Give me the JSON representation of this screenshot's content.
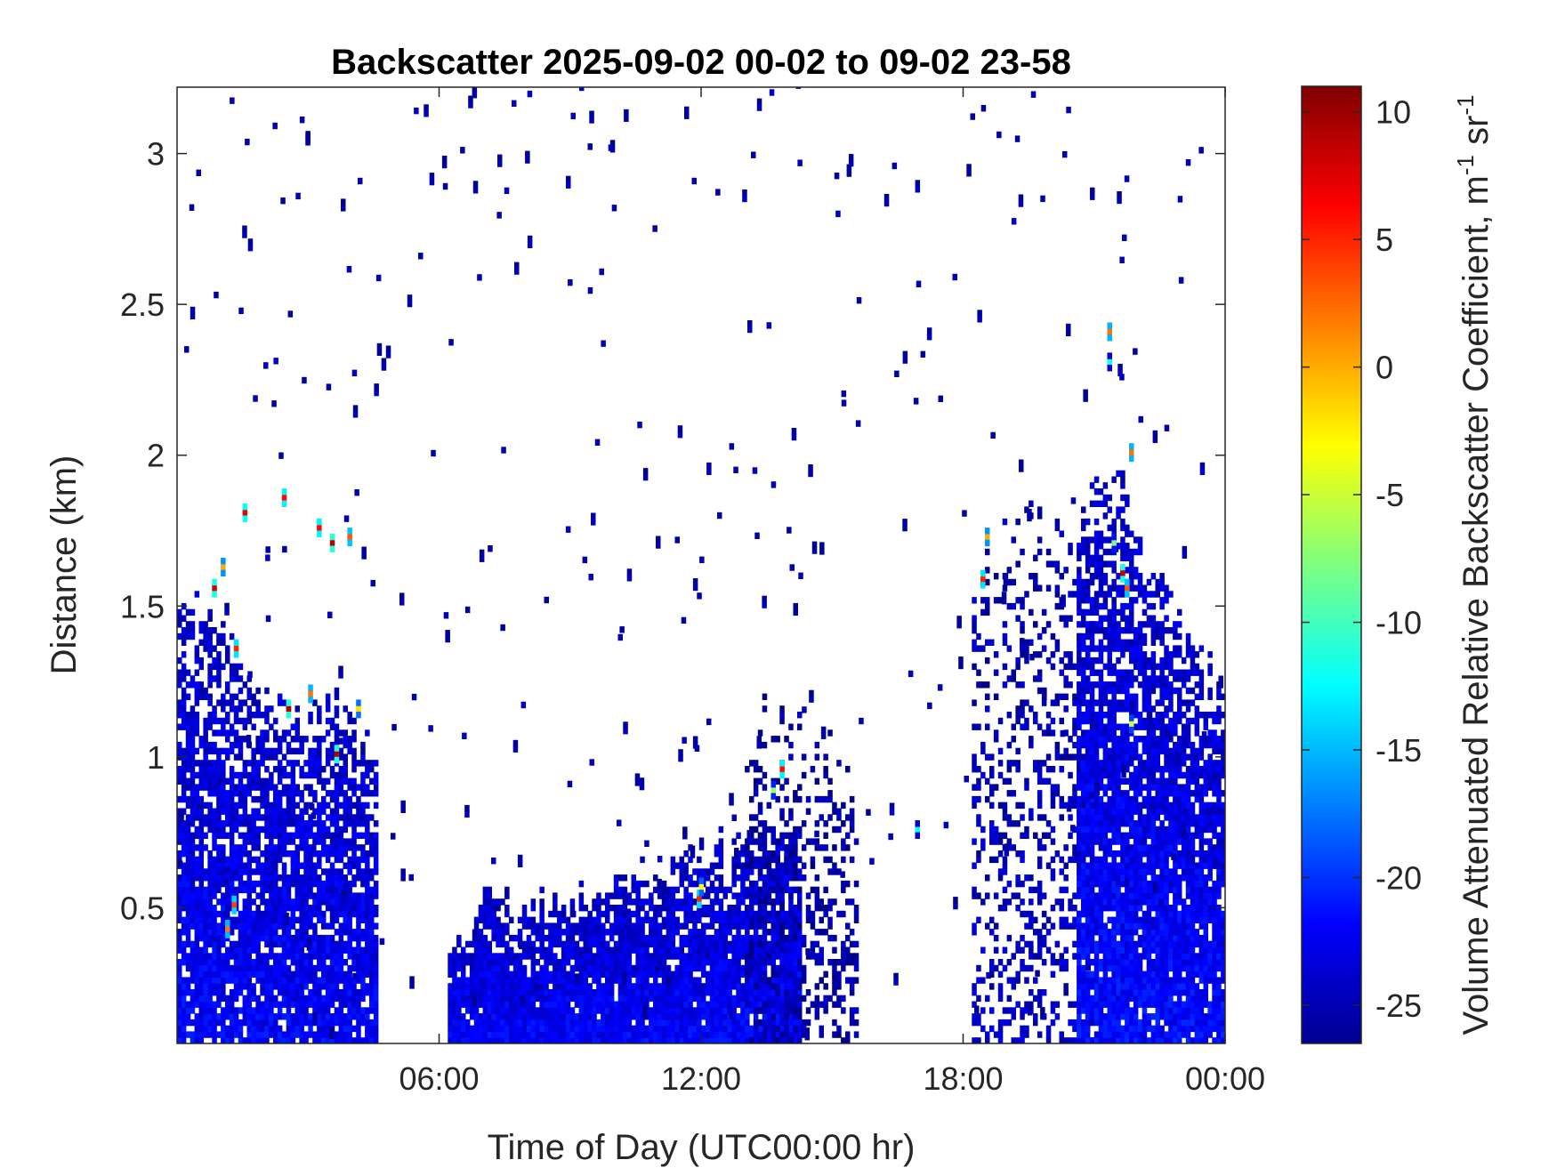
{
  "chart_data": {
    "type": "heatmap",
    "title": "Backscatter 2025-09-02 00-02 to 09-02 23-58",
    "xlabel": "Time of Day (UTC00:00 hr)",
    "ylabel": "Distance (km)",
    "colorbar_label": "Volume Attenuated Relative Backscatter Coefficient, m",
    "colorbar_label_exp1": "-1",
    "colorbar_label_mid": " sr",
    "colorbar_label_exp2": "-1",
    "colormap": "jet",
    "x_range_hours": [
      0,
      24
    ],
    "y_range_km": [
      0.05,
      3.22
    ],
    "c_range": [
      -26.5,
      11
    ],
    "x_ticks": [
      {
        "value": 6,
        "label": "06:00"
      },
      {
        "value": 12,
        "label": "12:00"
      },
      {
        "value": 18,
        "label": "18:00"
      },
      {
        "value": 24,
        "label": "00:00"
      }
    ],
    "y_ticks": [
      {
        "value": 0.5,
        "label": "0.5"
      },
      {
        "value": 1,
        "label": "1"
      },
      {
        "value": 1.5,
        "label": "1.5"
      },
      {
        "value": 2,
        "label": "2"
      },
      {
        "value": 2.5,
        "label": "2.5"
      },
      {
        "value": 3,
        "label": "3"
      }
    ],
    "c_ticks": [
      {
        "value": -25,
        "label": "-25"
      },
      {
        "value": -20,
        "label": "-20"
      },
      {
        "value": -15,
        "label": "-15"
      },
      {
        "value": -10,
        "label": "-10"
      },
      {
        "value": -5,
        "label": "-5"
      },
      {
        "value": 0,
        "label": "0"
      },
      {
        "value": 5,
        "label": "5"
      },
      {
        "value": 10,
        "label": "10"
      }
    ],
    "bin_width_hours": 0.1,
    "bin_height_km": 0.02,
    "layers": [
      {
        "x": [
          0.0,
          4.6
        ],
        "top": [
          1.5,
          1.5,
          1.45,
          1.3,
          1.2,
          1.2,
          1.15,
          1.2,
          1.2,
          1.1,
          0.95
        ],
        "dense_frac": 0.88,
        "value_bottom": -22,
        "value_top": -24
      },
      {
        "x": [
          6.2,
          14.2
        ],
        "top": [
          0.4,
          0.5,
          0.52,
          0.5,
          0.55,
          0.58,
          0.6,
          0.62,
          0.65,
          0.7,
          0.72,
          0.75,
          0.8
        ],
        "dense_frac": 0.97,
        "value_bottom": -22,
        "value_top": -24
      },
      {
        "x": [
          13.0,
          15.5
        ],
        "top": [
          1.1,
          1.2,
          1.15,
          1.1,
          1.05,
          0.9
        ],
        "dense_frac": 0.38,
        "value_bottom": -25,
        "value_top": -25.5
      },
      {
        "x": [
          18.2,
          21.0
        ],
        "top": [
          1.6,
          1.7,
          1.8,
          1.85,
          1.75,
          1.7,
          1.6
        ],
        "dense_frac": 0.32,
        "value_bottom": -24,
        "value_top": -25
      },
      {
        "x": [
          20.6,
          24.0
        ],
        "top": [
          1.8,
          1.9,
          1.95,
          1.7,
          1.55,
          1.4,
          1.3,
          1.25
        ],
        "dense_frac": 0.93,
        "value_bottom": -21.5,
        "value_top": -24
      }
    ],
    "bright_spots": [
      {
        "x": 11.9,
        "y": 0.52,
        "value": 5
      },
      {
        "x": 11.95,
        "y": 0.56,
        "value": -3
      },
      {
        "x": 1.1,
        "y": 0.42,
        "value": 2
      },
      {
        "x": 1.25,
        "y": 0.5,
        "value": 4
      },
      {
        "x": 0.8,
        "y": 1.55,
        "value": 8
      },
      {
        "x": 1.0,
        "y": 1.62,
        "value": 0
      },
      {
        "x": 1.3,
        "y": 1.35,
        "value": 5
      },
      {
        "x": 1.5,
        "y": 1.8,
        "value": 7
      },
      {
        "x": 2.4,
        "y": 1.85,
        "value": 6
      },
      {
        "x": 2.5,
        "y": 1.15,
        "value": 9
      },
      {
        "x": 3.2,
        "y": 1.75,
        "value": 6
      },
      {
        "x": 3.5,
        "y": 1.7,
        "value": 9
      },
      {
        "x": 3.9,
        "y": 1.72,
        "value": 3
      },
      {
        "x": 3.6,
        "y": 1.0,
        "value": 9
      },
      {
        "x": 3.0,
        "y": 1.2,
        "value": 2
      },
      {
        "x": 4.1,
        "y": 1.15,
        "value": -2
      },
      {
        "x": 21.3,
        "y": 2.4,
        "value": 2
      },
      {
        "x": 21.3,
        "y": 2.3,
        "value": -12
      },
      {
        "x": 21.6,
        "y": 1.6,
        "value": 8
      },
      {
        "x": 21.7,
        "y": 1.55,
        "value": 3
      },
      {
        "x": 21.4,
        "y": 1.7,
        "value": -8
      },
      {
        "x": 21.8,
        "y": 2.0,
        "value": 2
      },
      {
        "x": 21.8,
        "y": 1.1,
        "value": -5
      },
      {
        "x": 18.5,
        "y": 1.72,
        "value": 0
      },
      {
        "x": 18.4,
        "y": 1.58,
        "value": 5
      },
      {
        "x": 13.8,
        "y": 0.95,
        "value": 6
      },
      {
        "x": 13.6,
        "y": 0.88,
        "value": -7
      },
      {
        "x": 16.9,
        "y": 0.75,
        "value": -12
      }
    ]
  }
}
